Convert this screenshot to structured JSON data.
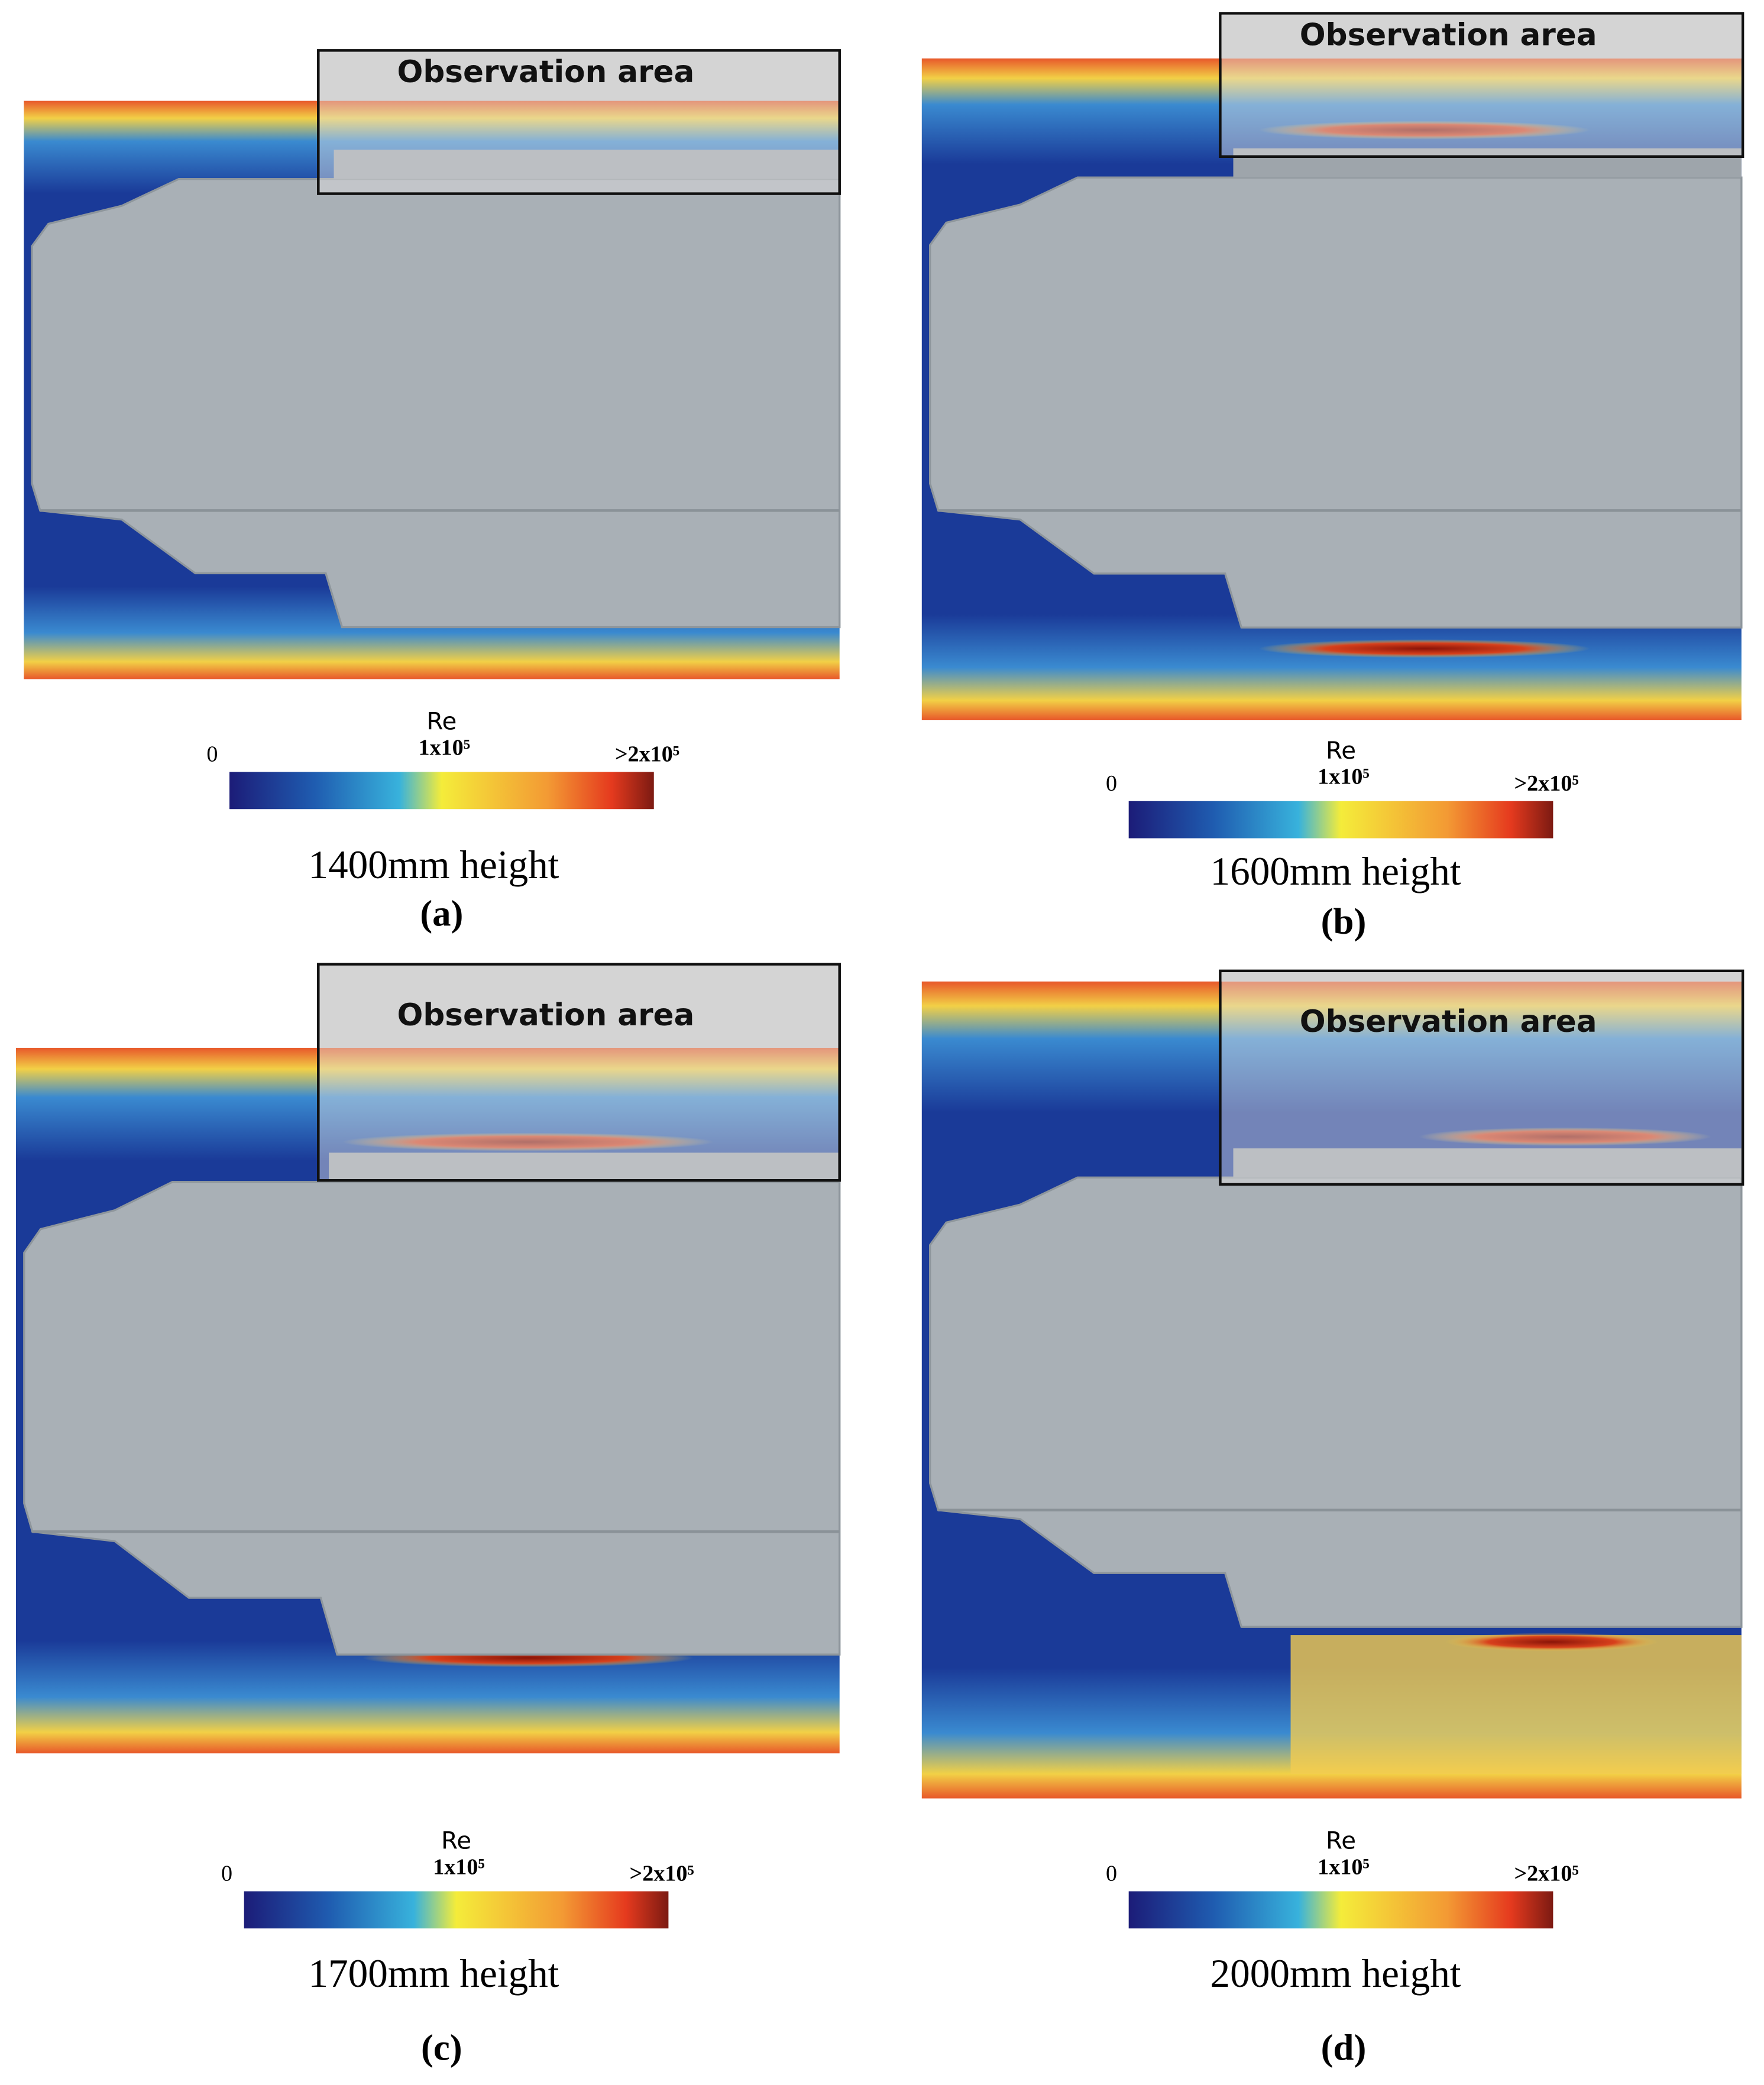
{
  "panels": [
    {
      "observation_label": "Observation area",
      "colorbar": {
        "title": "Re",
        "min_label": "0",
        "mid_label": "1x10⁵",
        "max_label": ">2x10⁵"
      },
      "caption": "1400mm height",
      "label": "(a)"
    },
    {
      "observation_label": "Observation area",
      "colorbar": {
        "title": "Re",
        "min_label": "0",
        "mid_label": "1x10⁵",
        "max_label": ">2x10⁵"
      },
      "caption": "1600mm height",
      "label": "(b)"
    },
    {
      "observation_label": "Observation area",
      "colorbar": {
        "title": "Re",
        "min_label": "0",
        "mid_label": "1x10⁵",
        "max_label": ">2x10⁵"
      },
      "caption": "1700mm height",
      "label": "(c)"
    },
    {
      "observation_label": "Observation area",
      "colorbar": {
        "title": "Re",
        "min_label": "0",
        "mid_label": "1x10⁵",
        "max_label": ">2x10⁵"
      },
      "caption": "2000mm height",
      "label": "(d)"
    }
  ]
}
